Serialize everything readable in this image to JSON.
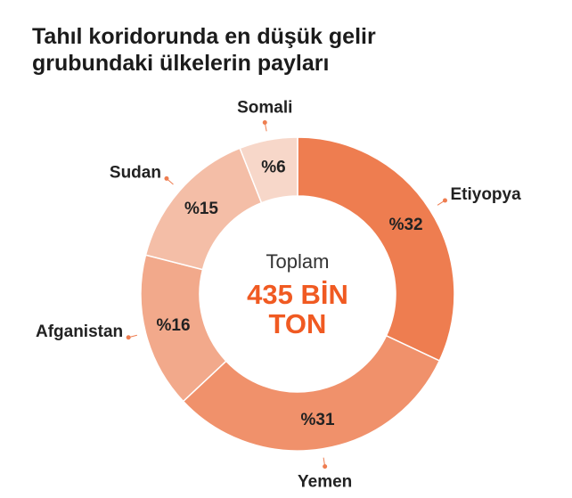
{
  "chart_data": {
    "type": "donut",
    "title": "Tahıl koridorunda en düşük gelir grubundaki ülkelerin payları",
    "categories": [
      "Etiyopya",
      "Yemen",
      "Afganistan",
      "Sudan",
      "Somali"
    ],
    "values": [
      32,
      31,
      16,
      15,
      6
    ],
    "value_labels": [
      "%32",
      "%31",
      "%16",
      "%15",
      "%6"
    ],
    "colors": [
      "#ee7d50",
      "#f0916b",
      "#f2a98b",
      "#f4bea7",
      "#f7d7c9"
    ],
    "center_text": [
      "Toplam",
      "435 BİN",
      "TON"
    ]
  }
}
